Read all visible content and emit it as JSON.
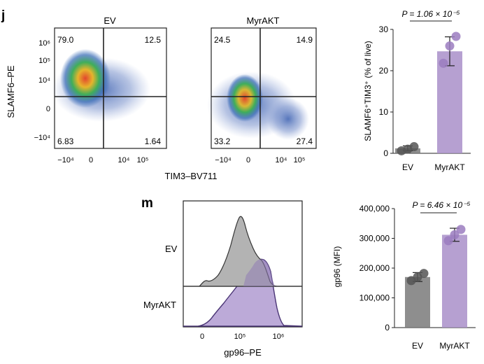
{
  "panel_j": {
    "label": "j",
    "ylabel": "SLAMF6–PE",
    "xlabel": "TIM3–BV711",
    "flow_y_ticks": [
      "10⁶",
      "10⁵",
      "10⁴",
      "0",
      "−10⁴"
    ],
    "flow_x_ticks": [
      "−10⁴",
      "0",
      "10⁴",
      "10⁵"
    ],
    "flow_plots": [
      {
        "name": "EV",
        "quadrants": {
          "top_left": "79.0",
          "top_right": "12.5",
          "bottom_left": "6.83",
          "bottom_right": "1.64"
        }
      },
      {
        "name": "MyrAKT",
        "quadrants": {
          "top_left": "24.5",
          "top_right": "14.9",
          "bottom_left": "33.2",
          "bottom_right": "27.4"
        }
      }
    ],
    "pvalue": "P = 1.06 × 10⁻⁵"
  },
  "panel_m": {
    "label": "m",
    "hist_rows": [
      "EV",
      "MyrAKT"
    ],
    "hist_xlabel": "gp96–PE",
    "hist_x_ticks": [
      "0",
      "10⁵",
      "10⁶"
    ],
    "pvalue": "P = 6.46 × 10⁻⁵"
  },
  "colors": {
    "ev": "#7a7a7a",
    "myrakt": "#a98fc9",
    "ev_dot": "#555555",
    "myrakt_dot": "#9b7cc0",
    "hist_ev": "#b3b3b3",
    "hist_myrakt": "#bcaad8",
    "hist_line_myrakt": "#4a3575"
  },
  "chart_data": [
    {
      "type": "bar",
      "categories": [
        "EV",
        "MyrAKT"
      ],
      "values": [
        1.2,
        24.7
      ],
      "errors": [
        0.6,
        3.5
      ],
      "points": [
        [
          0.6,
          1.0,
          1.6
        ],
        [
          21.8,
          26.0,
          28.3
        ]
      ],
      "ylabel": "SLAMF6⁺TIM3⁺ (% of live)",
      "ylim": [
        0,
        30
      ],
      "yticks": [
        "0",
        "10",
        "20",
        "30"
      ]
    },
    {
      "type": "bar",
      "categories": [
        "EV",
        "MyrAKT"
      ],
      "values": [
        170000,
        312000
      ],
      "errors": [
        15000,
        22000
      ],
      "points": [
        [
          158000,
          170000,
          182000
        ],
        [
          292000,
          312000,
          330000
        ]
      ],
      "ylabel": "gp96 (MFI)",
      "ylim": [
        0,
        400000
      ],
      "yticks": [
        "0",
        "100,000",
        "200,000",
        "300,000",
        "400,000"
      ]
    }
  ]
}
